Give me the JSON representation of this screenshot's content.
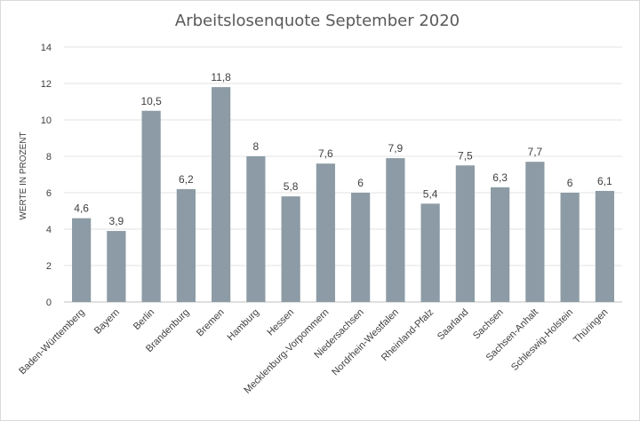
{
  "chart_data": {
    "type": "bar",
    "title": "Arbeitslosenquote September 2020",
    "xlabel": "",
    "ylabel": "WERTE IN PROZENT",
    "ylim": [
      0,
      14
    ],
    "yticks": [
      "0",
      "2",
      "4",
      "6",
      "8",
      "10",
      "12",
      "14"
    ],
    "grid": true,
    "legend": "none",
    "bar_color": "#8c9ba5",
    "categories": [
      "Baden-Württemberg",
      "Bayern",
      "Berlin",
      "Brandenburg",
      "Bremen",
      "Hamburg",
      "Hessen",
      "Mecklenburg-Vorpommern",
      "Niedersachsen",
      "Nordrhein-Westfalen",
      "Rheinland-Pfalz",
      "Saarland",
      "Sachsen",
      "Sachsen-Anhalt",
      "Schleswig-Holstein",
      "Thüringen"
    ],
    "values": [
      4.6,
      3.9,
      10.5,
      6.2,
      11.8,
      8,
      5.8,
      7.6,
      6,
      7.9,
      5.4,
      7.5,
      6.3,
      7.7,
      6,
      6.1
    ],
    "data_labels": [
      "4,6",
      "3,9",
      "10,5",
      "6,2",
      "11,8",
      "8",
      "5,8",
      "7,6",
      "6",
      "7,9",
      "5,4",
      "7,5",
      "6,3",
      "7,7",
      "6",
      "6,1"
    ]
  }
}
